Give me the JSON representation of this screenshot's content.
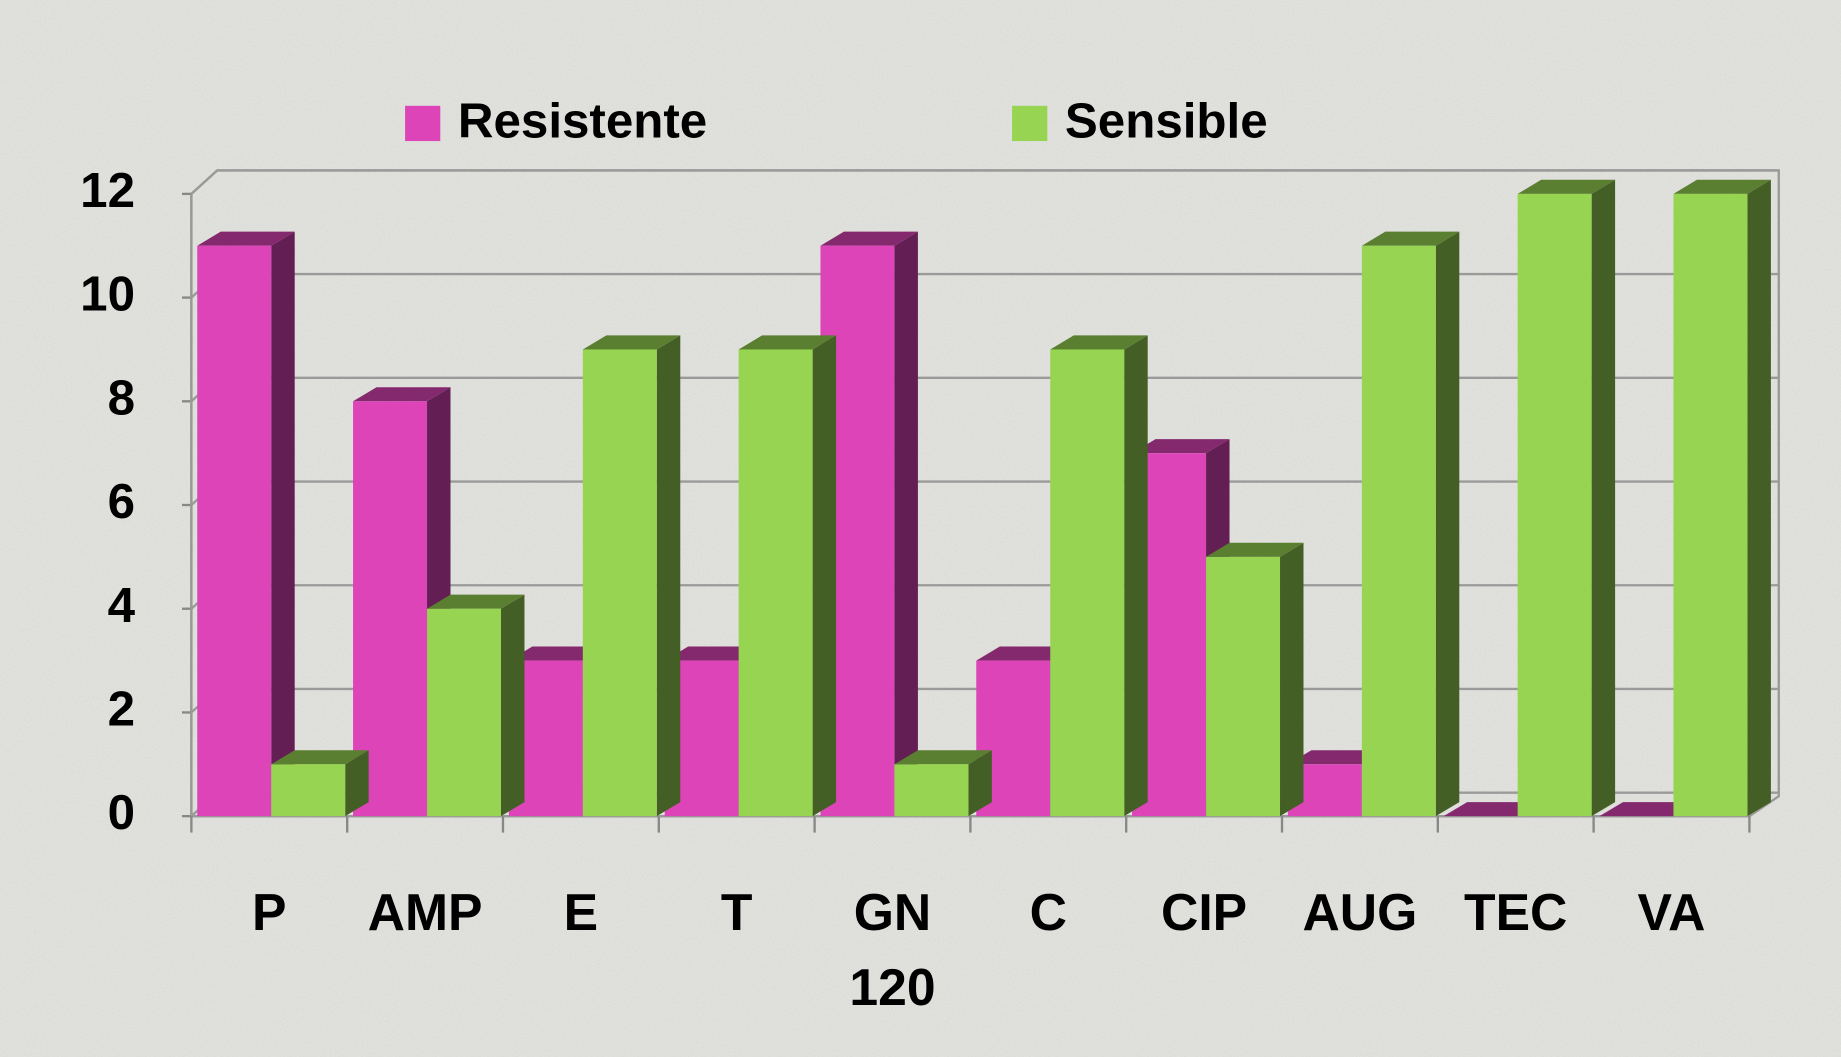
{
  "chart_data": {
    "type": "bar3d",
    "categories": [
      "P",
      "AMP",
      "E",
      "T",
      "GN 120",
      "C",
      "CIP",
      "AUG",
      "TEC",
      "VA"
    ],
    "series": [
      {
        "name": "Resistente",
        "color": "#dd44b8",
        "values": [
          11,
          8,
          3,
          3,
          11,
          3,
          7,
          1,
          0,
          0
        ]
      },
      {
        "name": "Sensible",
        "color": "#96d452",
        "values": [
          1,
          4,
          9,
          9,
          1,
          9,
          5,
          11,
          12,
          12
        ]
      }
    ],
    "ylim": [
      0,
      12
    ],
    "yticks": [
      0,
      2,
      4,
      6,
      8,
      10,
      12
    ],
    "grid": true,
    "legend": "top"
  }
}
